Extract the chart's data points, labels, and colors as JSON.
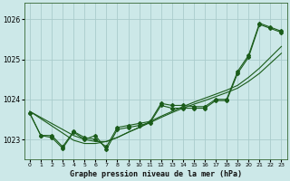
{
  "title": "Graphe pression niveau de la mer (hPa)",
  "bg_color": "#cce8e8",
  "grid_color": "#aacccc",
  "line_color": "#1a5c1a",
  "xlim": [
    -0.5,
    23.5
  ],
  "ylim": [
    1022.5,
    1026.4
  ],
  "yticks": [
    1023,
    1024,
    1025,
    1026
  ],
  "xticks": [
    0,
    1,
    2,
    3,
    4,
    5,
    6,
    7,
    8,
    9,
    10,
    11,
    12,
    13,
    14,
    15,
    16,
    17,
    18,
    19,
    20,
    21,
    22,
    23
  ],
  "smooth1": [
    1023.7,
    1023.52,
    1023.34,
    1023.16,
    1022.98,
    1022.9,
    1022.9,
    1022.95,
    1023.05,
    1023.18,
    1023.3,
    1023.42,
    1023.55,
    1023.67,
    1023.78,
    1023.88,
    1023.97,
    1024.07,
    1024.17,
    1024.28,
    1024.45,
    1024.65,
    1024.9,
    1025.15
  ],
  "smooth2": [
    1023.7,
    1023.55,
    1023.4,
    1023.25,
    1023.1,
    1023.0,
    1022.95,
    1022.95,
    1023.05,
    1023.18,
    1023.3,
    1023.45,
    1023.58,
    1023.7,
    1023.82,
    1023.93,
    1024.03,
    1024.13,
    1024.23,
    1024.35,
    1024.55,
    1024.78,
    1025.05,
    1025.32
  ],
  "jagged1": [
    1023.65,
    1023.1,
    1023.1,
    1022.82,
    1023.2,
    1023.05,
    1023.0,
    1022.82,
    1023.3,
    1023.35,
    1023.4,
    1023.45,
    1023.9,
    1023.85,
    1023.85,
    1023.82,
    1023.82,
    1024.0,
    1024.0,
    1024.7,
    1025.1,
    1025.9,
    1025.8,
    1025.7
  ],
  "jagged2": [
    1023.65,
    1023.1,
    1023.05,
    1022.78,
    1023.18,
    1023.0,
    1023.1,
    1022.75,
    1023.25,
    1023.3,
    1023.35,
    1023.42,
    1023.85,
    1023.78,
    1023.78,
    1023.78,
    1023.78,
    1023.97,
    1023.97,
    1024.65,
    1025.05,
    1025.87,
    1025.77,
    1025.67
  ]
}
